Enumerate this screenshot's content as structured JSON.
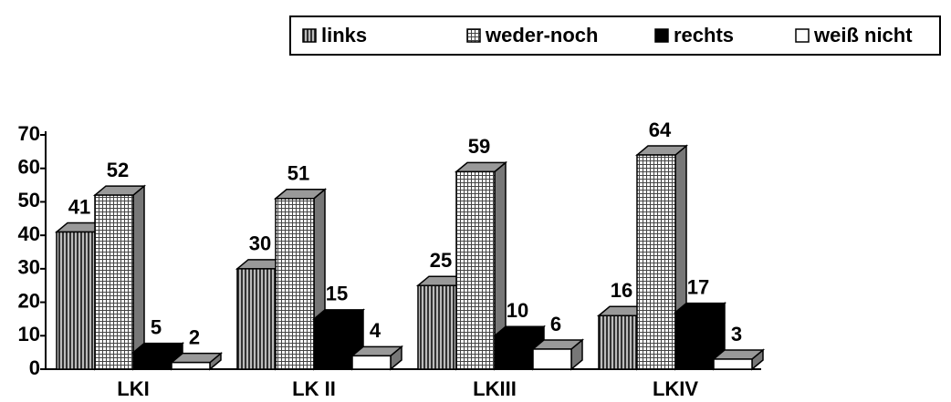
{
  "chart_data": {
    "type": "bar3d",
    "categories": [
      "LKI",
      "LK II",
      "LKIII",
      "LKIV"
    ],
    "series": [
      {
        "name": "links",
        "color": "#808080",
        "values": [
          41,
          30,
          25,
          16
        ]
      },
      {
        "name": "weder-noch",
        "color": "#c8c8c8",
        "values": [
          52,
          51,
          59,
          64
        ]
      },
      {
        "name": "rechts",
        "color": "#000000",
        "values": [
          5,
          15,
          10,
          17
        ]
      },
      {
        "name": "weiß nicht",
        "color": "#ffffff",
        "values": [
          2,
          4,
          6,
          3
        ]
      }
    ],
    "ylim": [
      0,
      70
    ],
    "yticks": [
      0,
      10,
      20,
      30,
      40,
      50,
      60,
      70
    ]
  }
}
